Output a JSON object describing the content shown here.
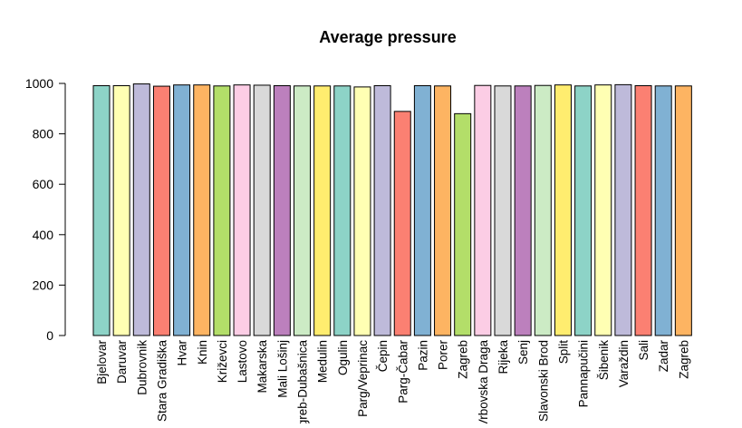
{
  "chart_data": {
    "type": "bar",
    "title": "Average pressure",
    "xlabel": "",
    "ylabel": "",
    "ylim": [
      0,
      1000
    ],
    "yticks": [
      0,
      200,
      400,
      600,
      800,
      1000
    ],
    "grid": false,
    "legend": "none",
    "categories": [
      "Bjelovar",
      "Daruvar",
      "Dubrovnik",
      "Stara Gradiška",
      "Hvar",
      "Knin",
      "Križevci",
      "Lastovo",
      "Makarska",
      "Mali Lošinj",
      "Zagreb-Dubašnica",
      "Medulin",
      "Ogulin",
      "Parg/Veprinac",
      "Čepin",
      "Parg-Čabar",
      "Pazin",
      "Porer",
      "Zagreb",
      "Vrbovska Draga",
      "Rijeka",
      "Senj",
      "Slavonski Brod",
      "Split",
      "Pannapučini",
      "Šibenik",
      "Varaždin",
      "Sali",
      "Zadar",
      "Zagreb"
    ],
    "values": [
      991,
      991,
      998,
      989,
      994,
      994,
      990,
      994,
      993,
      991,
      990,
      990,
      990,
      986,
      991,
      889,
      991,
      990,
      880,
      992,
      990,
      990,
      992,
      994,
      990,
      994,
      995,
      991,
      990,
      990
    ],
    "colors": [
      "#8dd3c7",
      "#ffffb3",
      "#bebada",
      "#fb8072",
      "#80b1d3",
      "#fdb462",
      "#b3de69",
      "#fccde5",
      "#d9d9d9",
      "#bc80bd",
      "#ccebc5",
      "#ffed6f",
      "#8dd3c7",
      "#ffffb3",
      "#bebada",
      "#fb8072",
      "#80b1d3",
      "#fdb462",
      "#b3de69",
      "#fccde5",
      "#d9d9d9",
      "#bc80bd",
      "#ccebc5",
      "#ffed6f",
      "#8dd3c7",
      "#ffffb3",
      "#bebada",
      "#fb8072",
      "#80b1d3",
      "#fdb462"
    ]
  }
}
